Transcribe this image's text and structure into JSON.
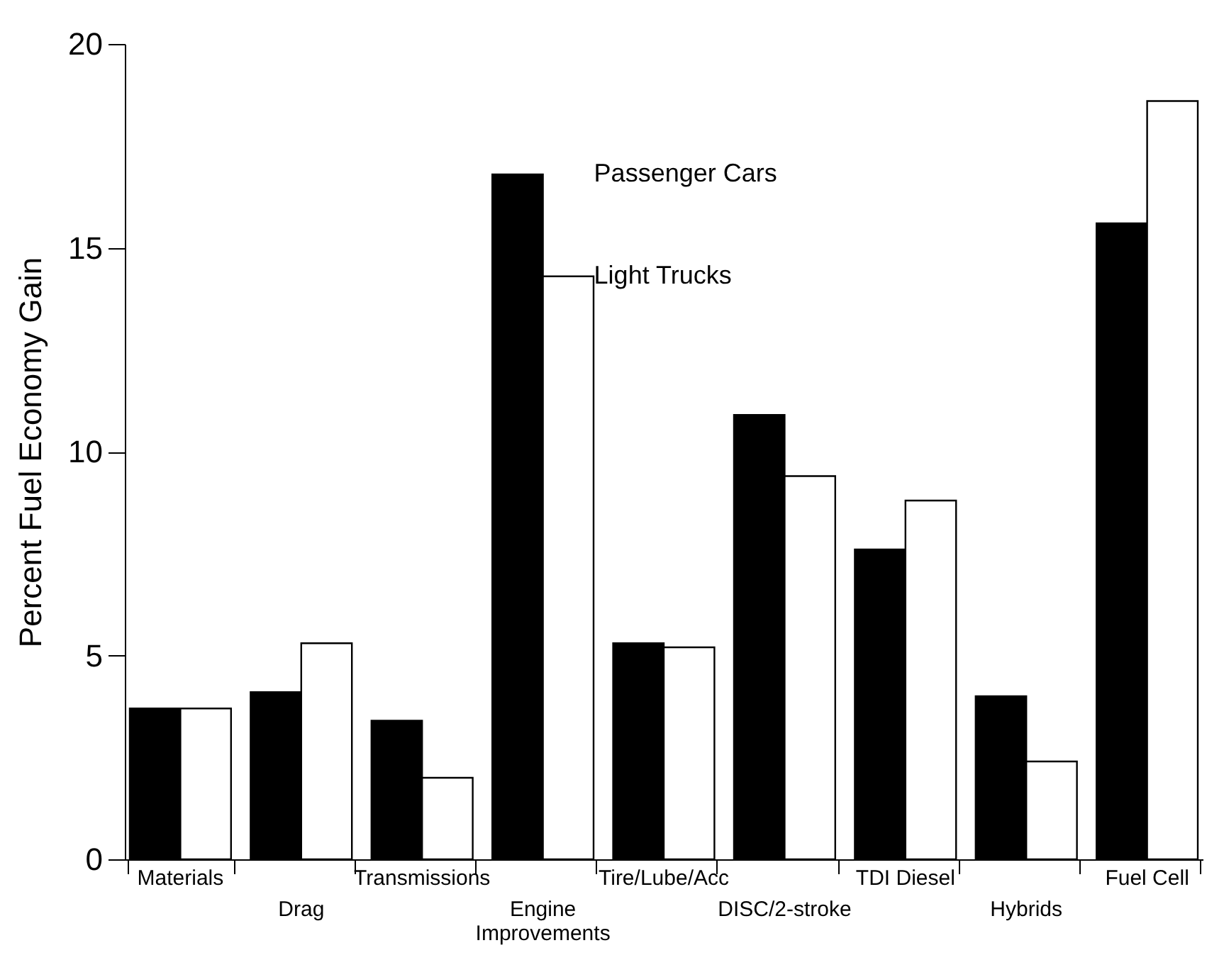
{
  "chart_data": {
    "type": "bar",
    "ylabel": "Percent Fuel Economy Gain",
    "categories": [
      "Materials",
      "Drag",
      "Transmissions",
      "Engine Improvements",
      "Tire/Lube/Acc",
      "DISC/2-stroke",
      "TDI Diesel",
      "Hybrids",
      "Fuel Cell"
    ],
    "series": [
      {
        "color": "#000000",
        "values": [
          3.7,
          4.1,
          3.4,
          16.8,
          5.3,
          10.9,
          7.6,
          4.0,
          15.6
        ]
      },
      {
        "color": "#ffffff",
        "values": [
          3.7,
          5.3,
          2.0,
          14.3,
          5.2,
          9.4,
          8.8,
          2.4,
          18.6
        ]
      }
    ],
    "ylim": [
      0,
      20
    ],
    "yticks": [
      0,
      5,
      10,
      15,
      20
    ],
    "grid": false,
    "annotations": [
      {
        "text": "Passenger Cars",
        "x": "Engine Improvements",
        "y": 16.8
      },
      {
        "text": "Light Trucks",
        "x": "Engine Improvements",
        "y": 14.3
      }
    ]
  }
}
